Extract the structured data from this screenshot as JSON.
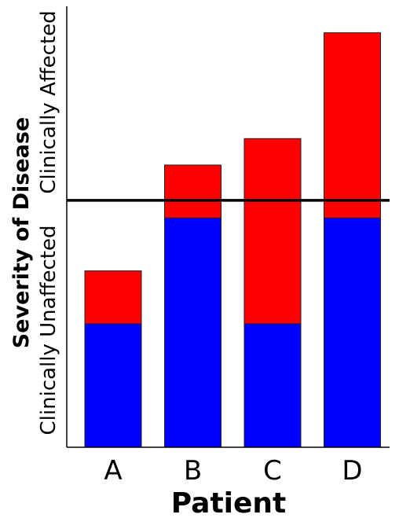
{
  "chart_data": {
    "type": "bar",
    "stacked": true,
    "categories": [
      "A",
      "B",
      "C",
      "D"
    ],
    "series": [
      {
        "color": "#0000ff",
        "values": [
          28,
          52,
          28,
          52
        ]
      },
      {
        "color": "#ff0000",
        "values": [
          12,
          12,
          42,
          42
        ]
      }
    ],
    "threshold": 56,
    "ylim": [
      0,
      100
    ],
    "xlabel": "Patient",
    "ylabel": "Severity of Disease",
    "ylabel_lower": "Clinically Unaffected",
    "ylabel_upper": "Clinically Affected",
    "threshold_color": "#000000",
    "grid": false,
    "legend": "none"
  }
}
